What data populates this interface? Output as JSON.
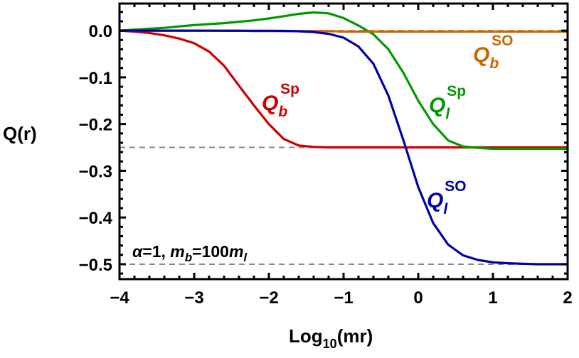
{
  "chart_data": {
    "type": "line",
    "xlabel": {
      "main": "Log",
      "sub": "10",
      "rest": "(mr)"
    },
    "ylabel": "Q(r)",
    "xlim": [
      -4,
      2
    ],
    "ylim": [
      -0.532,
      0.058
    ],
    "x_ticks": [
      -4,
      -3,
      -2,
      -1,
      0,
      1,
      2
    ],
    "x_tick_labels": [
      "−4",
      "−3",
      "−2",
      "−1",
      "0",
      "1",
      "2"
    ],
    "y_ticks": [
      0,
      -0.1,
      -0.2,
      -0.3,
      -0.4,
      -0.5
    ],
    "y_tick_labels": [
      "0.0",
      "−0.1",
      "−0.2",
      "−0.3",
      "−0.4",
      "−0.5"
    ],
    "grid": false,
    "reference_lines": [
      0,
      -0.25,
      -0.5
    ],
    "reference_line_color": "#888888",
    "annotation": {
      "alpha": "α",
      "eq1": "=1, ",
      "m": "m",
      "sub_b": "b",
      "eq2": "=100",
      "m2": "m",
      "sub_l": "l"
    },
    "x": [
      -4,
      -3.8,
      -3.6,
      -3.4,
      -3.2,
      -3,
      -2.8,
      -2.6,
      -2.4,
      -2.2,
      -2,
      -1.8,
      -1.6,
      -1.4,
      -1.2,
      -1,
      -0.8,
      -0.6,
      -0.4,
      -0.2,
      0,
      0.2,
      0.4,
      0.6,
      0.8,
      1,
      1.2,
      1.4,
      1.6,
      1.8,
      2
    ],
    "series": [
      {
        "key": "Qb_Sp",
        "label": {
          "main": "Q",
          "sub": "b",
          "sup": "Sp"
        },
        "color": "#cc0000",
        "values": [
          0,
          -0.002,
          -0.005,
          -0.01,
          -0.017,
          -0.027,
          -0.045,
          -0.075,
          -0.118,
          -0.16,
          -0.2,
          -0.232,
          -0.246,
          -0.249,
          -0.25,
          -0.25,
          -0.25,
          -0.25,
          -0.25,
          -0.25,
          -0.25,
          -0.25,
          -0.25,
          -0.25,
          -0.25,
          -0.25,
          -0.25,
          -0.25,
          -0.25,
          -0.25,
          -0.25
        ]
      },
      {
        "key": "Ql_Sp",
        "label": {
          "main": "Q",
          "sub": "l",
          "sup": "Sp"
        },
        "color": "#009900",
        "values": [
          0,
          0.002,
          0.004,
          0.006,
          0.009,
          0.012,
          0.014,
          0.016,
          0.019,
          0.022,
          0.026,
          0.031,
          0.036,
          0.039,
          0.037,
          0.027,
          0.011,
          -0.008,
          -0.04,
          -0.09,
          -0.15,
          -0.2,
          -0.235,
          -0.248,
          -0.251,
          -0.253,
          -0.253,
          -0.253,
          -0.253,
          -0.253,
          -0.253
        ]
      },
      {
        "key": "Qb_SO",
        "label": {
          "main": "Q",
          "sub": "b",
          "sup": "SO"
        },
        "color": "#cc6600",
        "values": [
          0,
          0,
          0,
          0,
          0,
          0,
          0,
          0,
          0,
          -0.001,
          -0.001,
          -0.001,
          -0.001,
          -0.001,
          -0.001,
          -0.002,
          -0.002,
          -0.002,
          -0.002,
          -0.002,
          -0.002,
          -0.002,
          -0.002,
          -0.002,
          -0.002,
          -0.002,
          -0.002,
          -0.002,
          -0.002,
          -0.002,
          -0.002
        ]
      },
      {
        "key": "Ql_SO",
        "label": {
          "main": "Q",
          "sub": "l",
          "sup": "SO"
        },
        "color": "#0000aa",
        "values": [
          0,
          0,
          0,
          0,
          0,
          -0.0001,
          -0.0001,
          -0.0002,
          -0.0002,
          -0.0003,
          -0.0003,
          -0.0006,
          -0.0013,
          -0.003,
          -0.0068,
          -0.015,
          -0.034,
          -0.071,
          -0.139,
          -0.234,
          -0.335,
          -0.412,
          -0.458,
          -0.481,
          -0.491,
          -0.496,
          -0.498,
          -0.499,
          -0.5,
          -0.5,
          -0.5
        ]
      }
    ]
  }
}
